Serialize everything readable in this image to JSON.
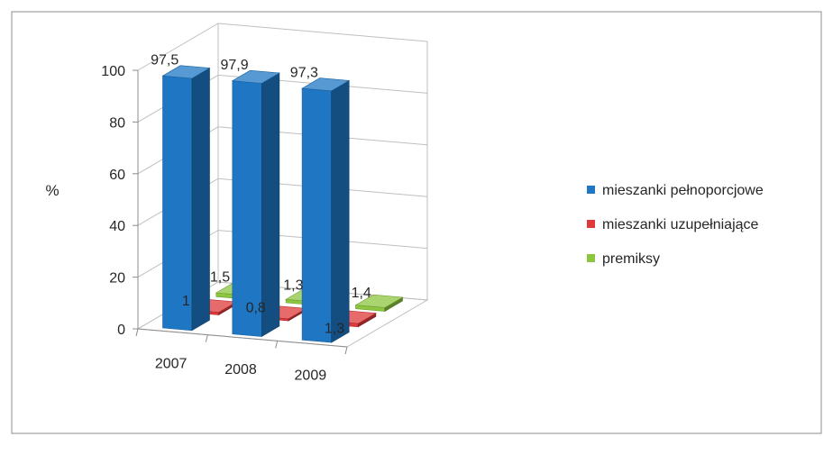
{
  "chart_data": {
    "type": "bar",
    "categories": [
      "2007",
      "2008",
      "2009"
    ],
    "series": [
      {
        "name": "mieszanki pełnoporcjowe",
        "values": [
          97.5,
          97.9,
          97.3
        ],
        "labels": [
          "97,5",
          "97,9",
          "97,3"
        ],
        "color": "#1f77c4"
      },
      {
        "name": "mieszanki uzupełniające",
        "values": [
          1,
          0.8,
          1.3
        ],
        "labels": [
          "1",
          "0,8",
          "1,3"
        ],
        "color": "#e0393b"
      },
      {
        "name": "premiksy",
        "values": [
          1.5,
          1.3,
          1.4
        ],
        "labels": [
          "1,5",
          "1,3",
          "1,4"
        ],
        "color": "#8cc63f"
      }
    ],
    "ylabel": "%",
    "yticks": [
      "0",
      "20",
      "40",
      "60",
      "80",
      "100"
    ],
    "ylim": [
      0,
      100
    ],
    "grid": true,
    "legend_position": "right",
    "style": "3d-clustered-column"
  }
}
